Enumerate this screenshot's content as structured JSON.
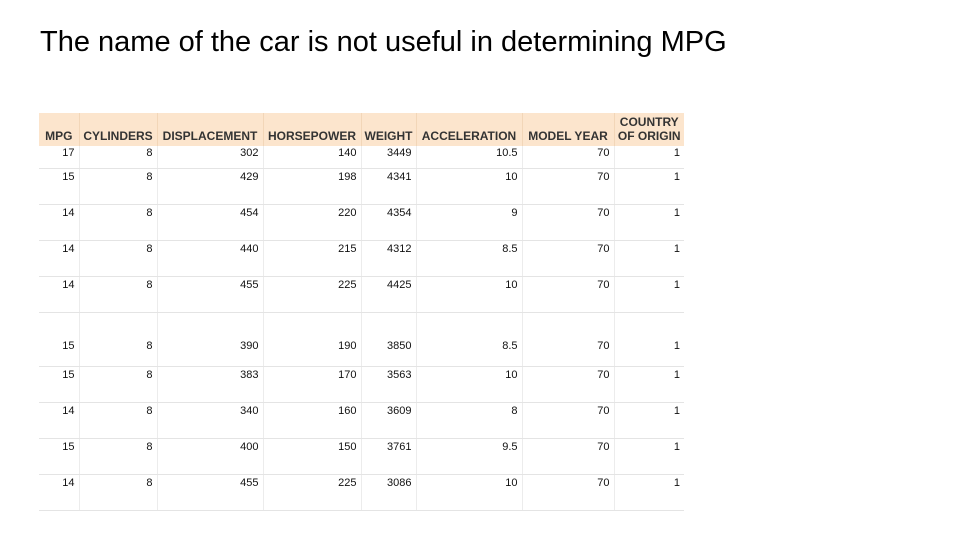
{
  "slide": {
    "title": "The name of the car is not useful in determining MPG"
  },
  "table": {
    "columns": [
      "MPG",
      "CYLINDERS",
      "DISPLACEMENT",
      "HORSEPOWER",
      "WEIGHT",
      "ACCELERATION",
      "MODEL YEAR",
      "COUNTRY OF ORIGIN"
    ],
    "header_bg": "#fce5cd",
    "rows": [
      [
        "17",
        "8",
        "302",
        "140",
        "3449",
        "10.5",
        "70",
        "1"
      ],
      [
        "15",
        "8",
        "429",
        "198",
        "4341",
        "10",
        "70",
        "1"
      ],
      [
        "14",
        "8",
        "454",
        "220",
        "4354",
        "9",
        "70",
        "1"
      ],
      [
        "14",
        "8",
        "440",
        "215",
        "4312",
        "8.5",
        "70",
        "1"
      ],
      [
        "14",
        "8",
        "455",
        "225",
        "4425",
        "10",
        "70",
        "1"
      ],
      [
        "15",
        "8",
        "390",
        "190",
        "3850",
        "8.5",
        "70",
        "1"
      ],
      [
        "15",
        "8",
        "383",
        "170",
        "3563",
        "10",
        "70",
        "1"
      ],
      [
        "14",
        "8",
        "340",
        "160",
        "3609",
        "8",
        "70",
        "1"
      ],
      [
        "15",
        "8",
        "400",
        "150",
        "3761",
        "9.5",
        "70",
        "1"
      ],
      [
        "14",
        "8",
        "455",
        "225",
        "3086",
        "10",
        "70",
        "1"
      ]
    ]
  }
}
